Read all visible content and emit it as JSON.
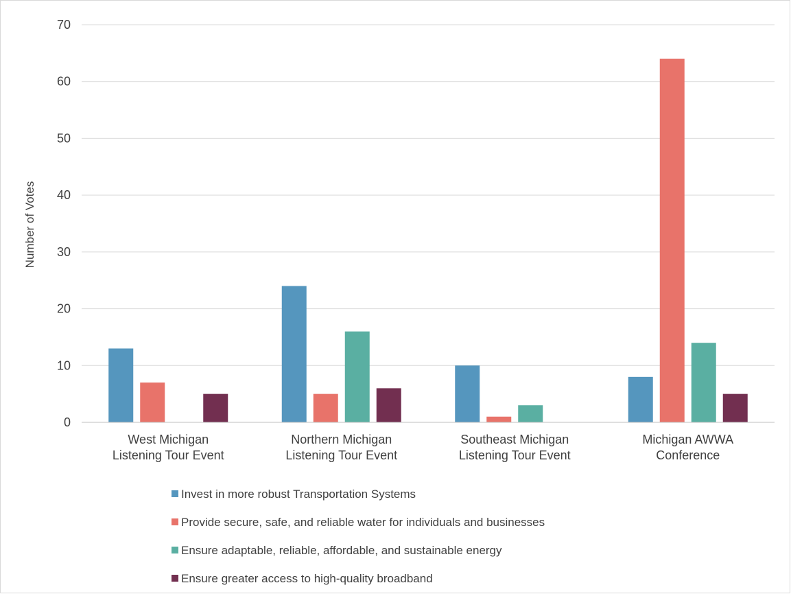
{
  "chart_data": {
    "type": "bar",
    "title": "",
    "xlabel": "",
    "ylabel": "Number of Votes",
    "ylim": [
      0,
      70
    ],
    "yticks": [
      0,
      10,
      20,
      30,
      40,
      50,
      60,
      70
    ],
    "grid": "horizontal",
    "legend_position": "bottom",
    "categories": [
      [
        "West Michigan",
        "Listening Tour Event"
      ],
      [
        "Northern Michigan",
        "Listening Tour Event"
      ],
      [
        "Southeast Michigan",
        "Listening Tour Event"
      ],
      [
        "Michigan AWWA",
        "Conference"
      ]
    ],
    "series": [
      {
        "name": "Invest in more robust Transportation Systems",
        "color": "#5596BE",
        "values": [
          13,
          24,
          10,
          8
        ]
      },
      {
        "name": "Provide secure, safe, and reliable water for individuals and businesses",
        "color": "#E8736A",
        "values": [
          7,
          5,
          1,
          64
        ]
      },
      {
        "name": "Ensure adaptable, reliable, affordable, and sustainable energy",
        "color": "#5AAFA2",
        "values": [
          0,
          16,
          3,
          14
        ]
      },
      {
        "name": "Ensure greater access to high-quality broadband",
        "color": "#722F50",
        "values": [
          5,
          6,
          0,
          5
        ]
      }
    ]
  }
}
